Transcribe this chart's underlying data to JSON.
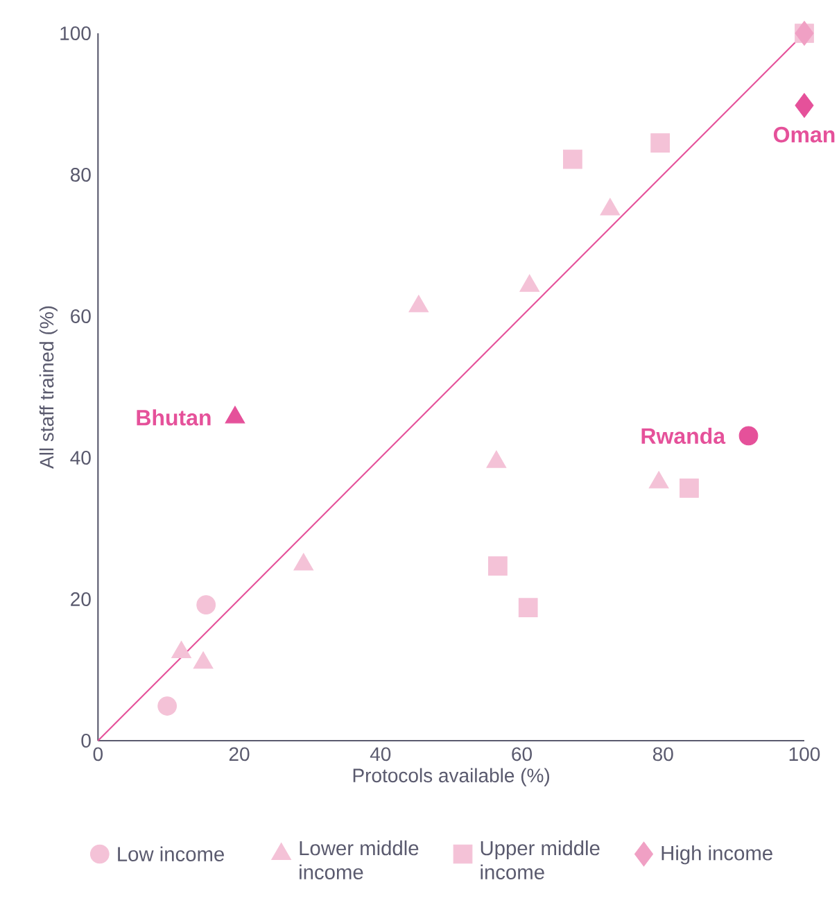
{
  "chart_data": {
    "type": "scatter",
    "xlabel": "Protocols available (%)",
    "ylabel": "All staff trained (%)",
    "xlim": [
      0,
      100
    ],
    "ylim": [
      0,
      100
    ],
    "xticks": [
      0,
      20,
      40,
      60,
      80,
      100
    ],
    "yticks": [
      0,
      20,
      40,
      60,
      80,
      100
    ],
    "grid": false,
    "legend": "bottom",
    "series": [
      {
        "name": "Low income",
        "marker": "circle",
        "color": "#f4c2d7",
        "x": [
          9.8,
          15.3,
          92.1
        ],
        "values": [
          4.9,
          19.2,
          43.1
        ],
        "colors": [
          "#f4c2d7",
          "#f4c2d7",
          "#e5519a"
        ]
      },
      {
        "name": "Lower middle income",
        "marker": "triangle",
        "color": "#f4c2d7",
        "x": [
          11.8,
          14.9,
          29.1,
          45.4,
          61.1,
          72.5,
          56.4,
          79.4,
          19.4
        ],
        "values": [
          12.5,
          11,
          24.9,
          61.4,
          64.3,
          75.1,
          39.4,
          36.5,
          45.7
        ],
        "colors": [
          "#f4c2d7",
          "#f4c2d7",
          "#f4c2d7",
          "#f4c2d7",
          "#f4c2d7",
          "#f4c2d7",
          "#f4c2d7",
          "#f4c2d7",
          "#e5519a"
        ]
      },
      {
        "name": "Upper middle income",
        "marker": "square",
        "color": "#f4c2d7",
        "x": [
          67.2,
          79.6,
          56.6,
          60.9,
          83.7,
          100
        ],
        "values": [
          82.2,
          84.5,
          24.7,
          18.8,
          35.7,
          100
        ]
      },
      {
        "name": "High income",
        "marker": "diamond",
        "color": "#f4c2d7",
        "x": [
          100,
          100
        ],
        "values": [
          100,
          89.8
        ],
        "colors": [
          "#f0a0c4",
          "#e5519a"
        ]
      },
      {
        "type": "line",
        "color": "#e5519a",
        "marker": "none",
        "x": [
          0,
          100
        ],
        "values": [
          0,
          100
        ]
      }
    ],
    "annotations": [
      {
        "text": "Bhutan",
        "x": 19.4,
        "y": 45.7
      },
      {
        "text": "Rwanda",
        "x": 92.1,
        "y": 43.1
      },
      {
        "text": "Oman",
        "x": 100,
        "y": 89.8
      }
    ]
  }
}
